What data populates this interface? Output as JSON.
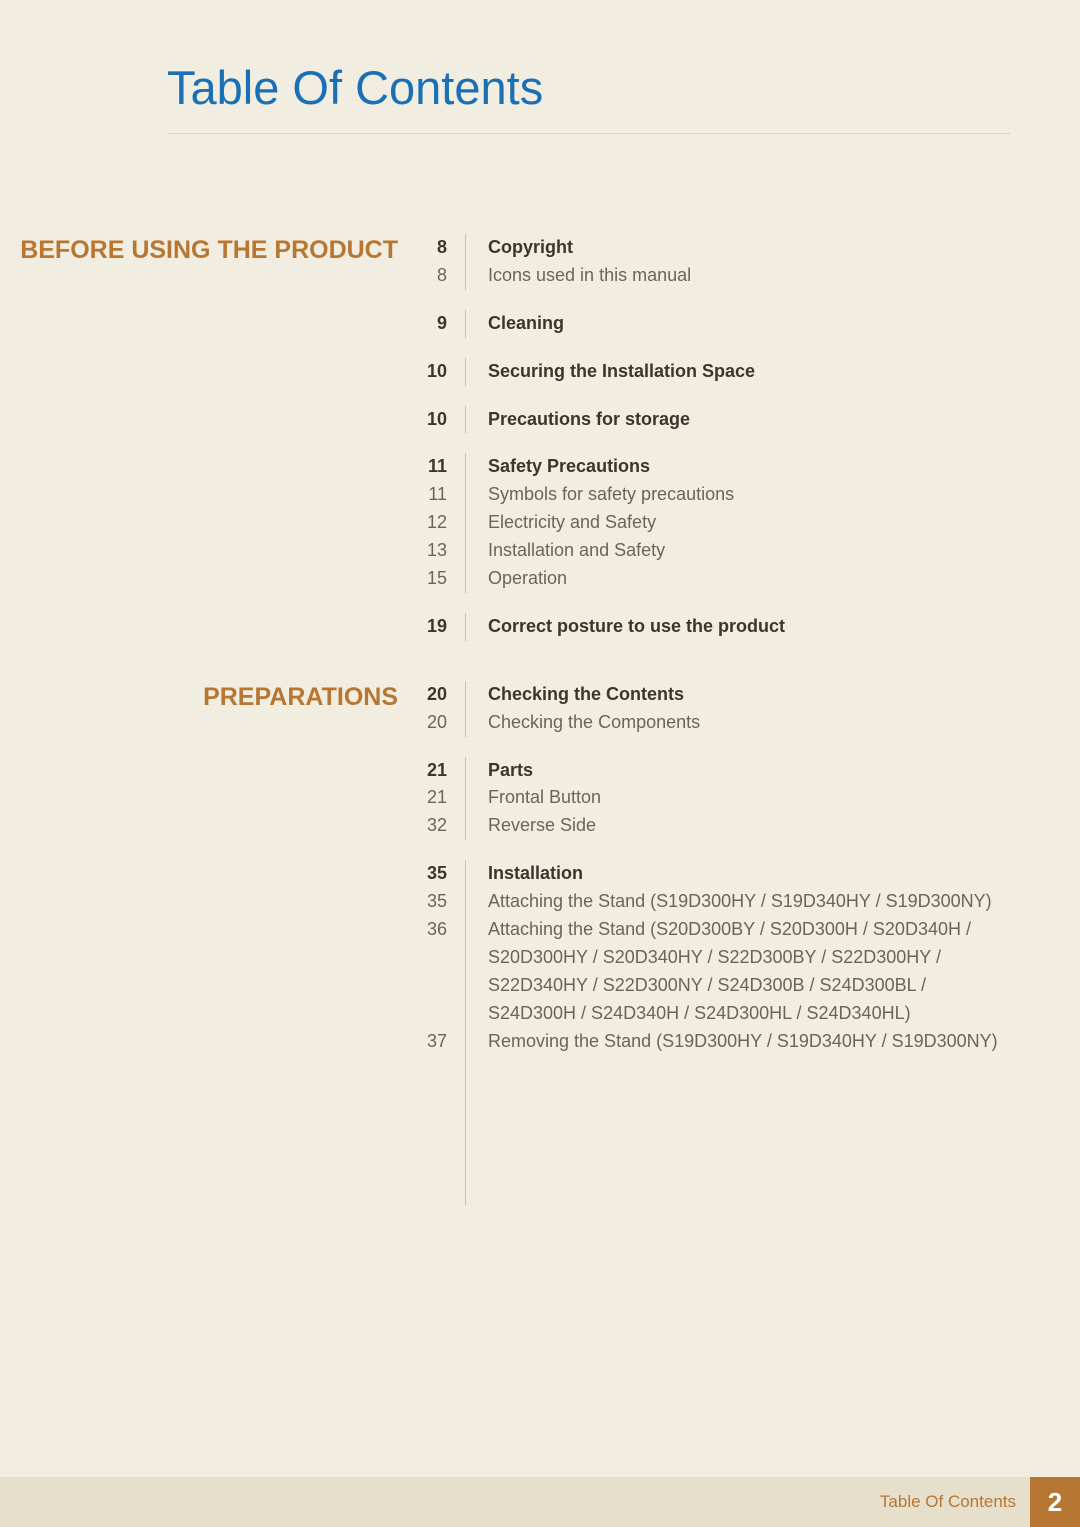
{
  "page_title": "Table Of Contents",
  "footer_label": "Table Of Contents",
  "footer_page": "2",
  "background_color": "#f1eee1",
  "accent_color": "#b77732",
  "title_color": "#1a6fb5",
  "sections": [
    {
      "label": "BEFORE USING THE PRODUCT",
      "groups": [
        [
          {
            "page": "8",
            "bold": true,
            "text": "Copyright"
          },
          {
            "page": "8",
            "bold": false,
            "text": "Icons used in this manual"
          }
        ],
        [
          {
            "page": "9",
            "bold": true,
            "text": "Cleaning"
          }
        ],
        [
          {
            "page": "10",
            "bold": true,
            "text": "Securing the Installation Space"
          }
        ],
        [
          {
            "page": "10",
            "bold": true,
            "text": "Precautions for storage"
          }
        ],
        [
          {
            "page": "11",
            "bold": true,
            "text": "Safety Precautions"
          },
          {
            "page": "11",
            "bold": false,
            "text": "Symbols for safety precautions"
          },
          {
            "page": "12",
            "bold": false,
            "text": "Electricity and Safety"
          },
          {
            "page": "13",
            "bold": false,
            "text": "Installation and Safety"
          },
          {
            "page": "15",
            "bold": false,
            "text": "Operation"
          }
        ],
        [
          {
            "page": "19",
            "bold": true,
            "text": "Correct posture to use the product"
          }
        ]
      ]
    },
    {
      "label": "PREPARATIONS",
      "groups": [
        [
          {
            "page": "20",
            "bold": true,
            "text": "Checking the Contents"
          },
          {
            "page": "20",
            "bold": false,
            "text": "Checking the Components"
          }
        ],
        [
          {
            "page": "21",
            "bold": true,
            "text": "Parts"
          },
          {
            "page": "21",
            "bold": false,
            "text": "Frontal Button"
          },
          {
            "page": "32",
            "bold": false,
            "text": "Reverse Side"
          }
        ],
        [
          {
            "page": "35",
            "bold": true,
            "text": "Installation"
          },
          {
            "page": "35",
            "bold": false,
            "text": "Attaching the Stand (S19D300HY / S19D340HY / S19D300NY)"
          },
          {
            "page": "36",
            "bold": false,
            "text": "Attaching the Stand (S20D300BY / S20D300H / S20D340H / S20D300HY / S20D340HY / S22D300BY / S22D300HY / S22D340HY / S22D300NY / S24D300B / S24D300BL / S24D300H / S24D340H / S24D300HL / S24D340HL)"
          },
          {
            "page": "37",
            "bold": false,
            "text": "Removing the Stand (S19D300HY / S19D340HY / S19D300NY)"
          }
        ]
      ]
    }
  ]
}
